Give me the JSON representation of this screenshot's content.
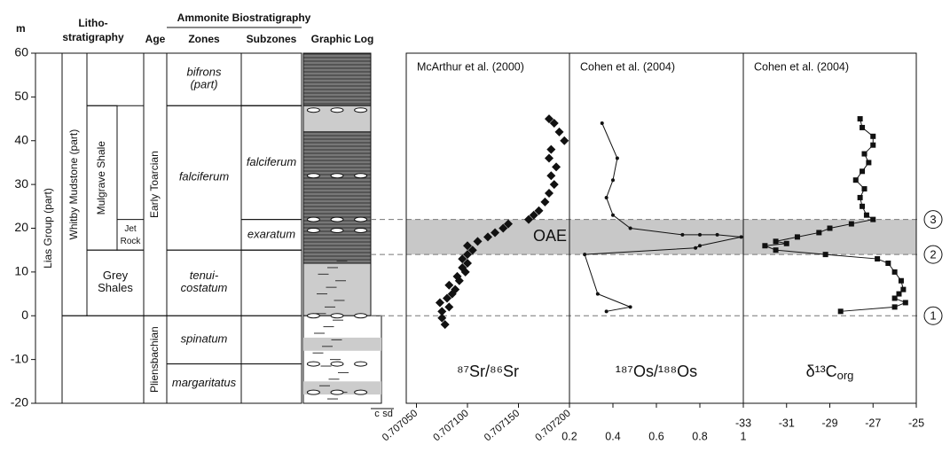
{
  "depth_axis": {
    "label": "m",
    "ylim": [
      -20,
      60
    ],
    "yticks": [
      -20,
      -10,
      0,
      10,
      20,
      30,
      40,
      50,
      60
    ]
  },
  "lithostratigraphy": {
    "title": [
      "Litho-",
      "stratigraphy"
    ],
    "group": [
      {
        "label": "Lias Group (part)",
        "range": [
          -20,
          60
        ]
      }
    ],
    "formation": [
      {
        "label": "Whitby Mudstone (part)",
        "range": [
          0,
          60
        ]
      }
    ],
    "member": [
      {
        "label": [
          "Grey",
          "Shales"
        ],
        "range": [
          0,
          15
        ]
      },
      {
        "label": [
          "Mulgrave Shale"
        ],
        "range": [
          15,
          48
        ]
      }
    ],
    "bed": [
      {
        "label": [
          "Jet",
          "Rock"
        ],
        "range": [
          15,
          22
        ]
      }
    ]
  },
  "biostratigraphy": {
    "title": "Ammonite Biostratigraphy",
    "age_header": "Age",
    "zones_header": "Zones",
    "subzones_header": "Subzones",
    "ages": [
      {
        "label": "Early Toarcian",
        "range": [
          0,
          60
        ]
      },
      {
        "label": "Pliensbachian",
        "range": [
          -20,
          0
        ]
      }
    ],
    "zones": [
      {
        "label": [
          "bifrons",
          "(part)"
        ],
        "range": [
          48,
          60
        ]
      },
      {
        "label": [
          "falciferum"
        ],
        "range": [
          15,
          48
        ]
      },
      {
        "label": [
          "tenui-",
          "costatum"
        ],
        "range": [
          0,
          15
        ]
      },
      {
        "label": [
          "spinatum"
        ],
        "range": [
          -11,
          0
        ]
      },
      {
        "label": [
          "margaritatus"
        ],
        "range": [
          -20,
          -11
        ]
      }
    ],
    "subzones": [
      {
        "label": "falciferum",
        "range": [
          22,
          48
        ]
      },
      {
        "label": "exaratum",
        "range": [
          15,
          22
        ]
      }
    ]
  },
  "graphic_log": {
    "title": "Graphic Log",
    "scale": [
      "c",
      "sd"
    ]
  },
  "oae": {
    "label": "OAE",
    "range": [
      14,
      22
    ]
  },
  "horizons": [
    {
      "label": "1",
      "depth": 0
    },
    {
      "label": "2",
      "depth": 14
    },
    {
      "label": "3",
      "depth": 22
    }
  ],
  "chart_data": [
    {
      "type": "scatter",
      "title": "McArthur et al. (2000)",
      "xlabel": "⁸⁷Sr/⁸⁶Sr",
      "color": "#111111",
      "xlim": [
        0.70704,
        0.7072
      ],
      "xticks": [
        {
          "value": 0.70705,
          "label": "0.707050"
        },
        {
          "value": 0.7071,
          "label": "0.707100"
        },
        {
          "value": 0.70715,
          "label": "0.707150"
        },
        {
          "value": 0.7072,
          "label": "0.707200"
        }
      ],
      "y": [
        -2,
        -0.5,
        1,
        2,
        3,
        4,
        5,
        6,
        7,
        8,
        9,
        10,
        11,
        12,
        13,
        14,
        15,
        16,
        17,
        18,
        19,
        20,
        21,
        22,
        23,
        24,
        26,
        28,
        30,
        32,
        34,
        36,
        38,
        40,
        42,
        44,
        45
      ],
      "x": [
        0.707078,
        0.707075,
        0.707075,
        0.707082,
        0.707073,
        0.70708,
        0.707085,
        0.707088,
        0.707082,
        0.707092,
        0.70709,
        0.707098,
        0.707095,
        0.7071,
        0.707095,
        0.7071,
        0.707105,
        0.7071,
        0.70711,
        0.70712,
        0.707127,
        0.707135,
        0.70714,
        0.70716,
        0.707165,
        0.70717,
        0.707176,
        0.70718,
        0.707185,
        0.707182,
        0.707187,
        0.70718,
        0.707182,
        0.707195,
        0.70719,
        0.707185,
        0.70718
      ]
    },
    {
      "type": "line",
      "title": "Cohen et al. (2004)",
      "xlabel": "¹⁸⁷Os/¹⁸⁸Os",
      "color": "#111111",
      "xlim": [
        0.2,
        1
      ],
      "xticks": [
        0.2,
        0.4,
        0.6,
        0.8,
        1
      ],
      "y": [
        1,
        2,
        5,
        14,
        15.5,
        16,
        18,
        18.5,
        18.5,
        18.5,
        20,
        23,
        27,
        31,
        36,
        44
      ],
      "x": [
        0.37,
        0.48,
        0.33,
        0.27,
        0.78,
        0.8,
        0.99,
        0.88,
        0.8,
        0.72,
        0.48,
        0.4,
        0.37,
        0.4,
        0.42,
        0.35
      ]
    },
    {
      "type": "line",
      "title": "Cohen et al. (2004)",
      "xlabel": "δ¹³C",
      "xlabel_sub": "org",
      "color": "#111111",
      "xlim": [
        -33,
        -25
      ],
      "xticks": [
        -33,
        -31,
        -29,
        -27,
        -25
      ],
      "y": [
        1,
        2,
        3,
        4,
        5,
        6,
        8,
        10,
        12,
        13,
        14,
        15,
        16,
        16.5,
        17,
        18,
        19,
        20,
        21,
        22,
        23,
        25,
        27,
        29,
        31,
        33,
        35,
        37,
        39,
        41,
        43,
        45
      ],
      "x": [
        -28.5,
        -26,
        -25.5,
        -26,
        -25.8,
        -25.6,
        -25.7,
        -26,
        -26.3,
        -26.8,
        -29.2,
        -31.5,
        -32,
        -31,
        -31.5,
        -30.5,
        -29.5,
        -29,
        -28,
        -27,
        -27.3,
        -27.5,
        -27.6,
        -27.4,
        -27.8,
        -27.5,
        -27.2,
        -27.4,
        -27,
        -27,
        -27.5,
        -27.6
      ]
    }
  ]
}
